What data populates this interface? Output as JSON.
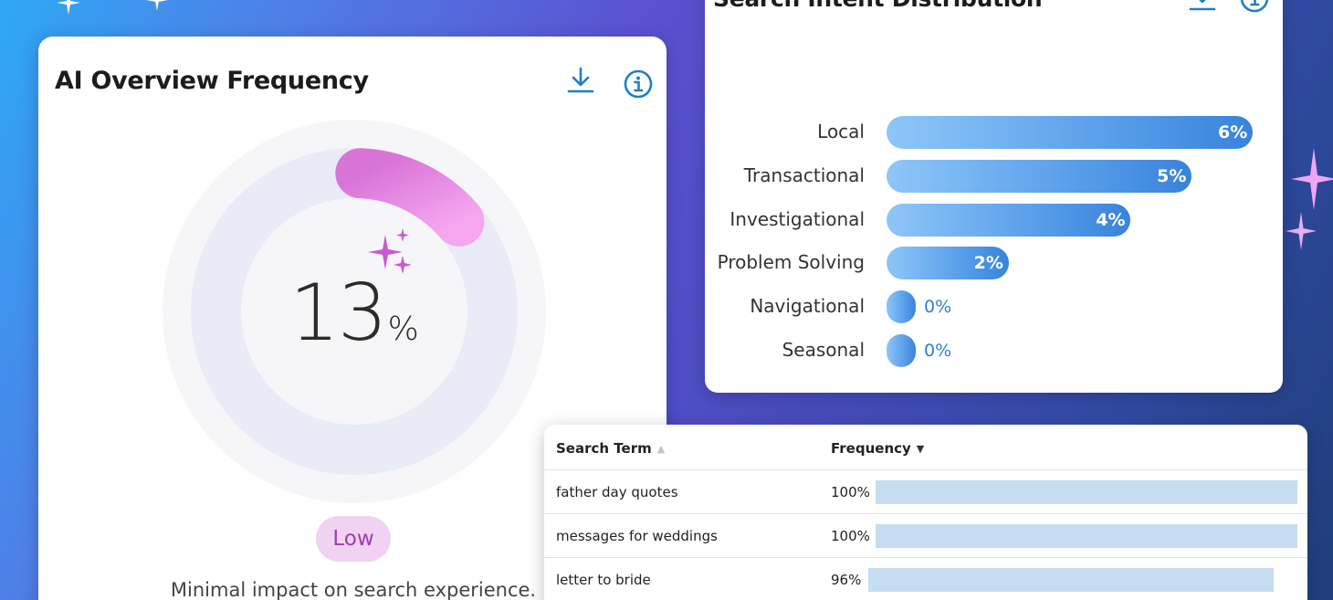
{
  "ai_overview": {
    "title": "AI Overview Frequency",
    "value": "13",
    "unit": "%",
    "percent": 13,
    "level": "Low",
    "description": "Minimal impact on search experience."
  },
  "intent": {
    "title": "Search Intent Distribution",
    "bars": [
      {
        "label": "Local",
        "value": "6%",
        "percent": 6
      },
      {
        "label": "Transactional",
        "value": "5%",
        "percent": 5
      },
      {
        "label": "Investigational",
        "value": "4%",
        "percent": 4
      },
      {
        "label": "Problem Solving",
        "value": "2%",
        "percent": 2
      },
      {
        "label": "Navigational",
        "value": "0%",
        "percent": 0
      },
      {
        "label": "Seasonal",
        "value": "0%",
        "percent": 0
      }
    ]
  },
  "table": {
    "col_term": "Search Term",
    "col_freq": "Frequency",
    "rows": [
      {
        "term": "father day quotes",
        "freq": "100%",
        "percent": 100
      },
      {
        "term": "messages for weddings",
        "freq": "100%",
        "percent": 100
      },
      {
        "term": "letter to bride",
        "freq": "96%",
        "percent": 96
      }
    ]
  },
  "icons": {
    "download": "download-icon",
    "info": "info-icon",
    "sparkle": "sparkle-icon"
  },
  "colors": {
    "gauge_arc": "#e58ae9",
    "badge_bg": "#f0d3f2",
    "badge_text": "#a13bb5",
    "bar_blue": "#3883dc",
    "table_bar": "#c6dcf1",
    "icon_blue": "#1f7fc9"
  }
}
